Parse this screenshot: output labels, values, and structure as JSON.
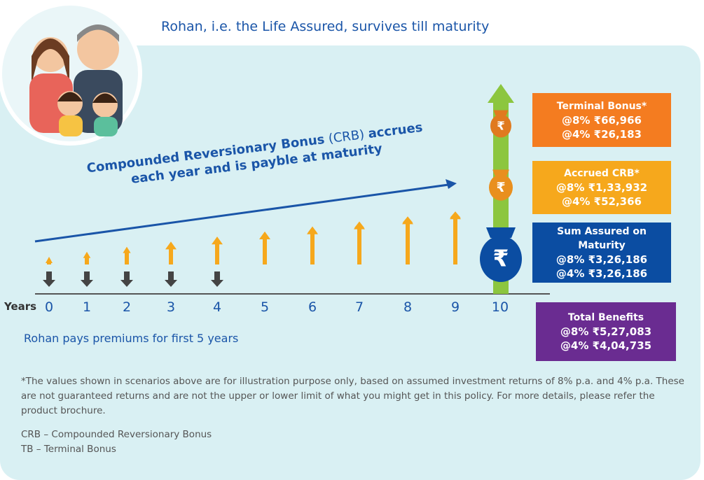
{
  "heading": "Rohan, i.e. the Life Assured, survives till maturity",
  "crb_note": {
    "line1": [
      {
        "text": "Compounded Reversionary Bonus",
        "bold": true
      },
      {
        "text": " (CRB) ",
        "bold": false
      },
      {
        "text": "accrues",
        "bold": true
      }
    ],
    "line2": "each year and is payble at maturity"
  },
  "timeline": {
    "axis_label": "Years",
    "years": [
      0,
      1,
      2,
      3,
      4,
      5,
      6,
      7,
      8,
      9,
      10
    ]
  },
  "premium_note": "Rohan pays premiums for first 5 years",
  "bag_symbol": "₹",
  "boxes": [
    {
      "title": "Terminal Bonus*",
      "lines": [
        "@8% ₹66,966",
        "@4% ₹26,183"
      ]
    },
    {
      "title": "Accrued CRB*",
      "lines": [
        "@8% ₹1,33,932",
        "@4% ₹52,366"
      ]
    },
    {
      "title": "Sum Assured on Maturity",
      "lines": [
        "@8% ₹3,26,186",
        "@4% ₹3,26,186"
      ]
    },
    {
      "title": "Total Benefits",
      "lines": [
        "@8% ₹5,27,083",
        "@4% ₹4,04,735"
      ]
    }
  ],
  "footnote": "*The values shown in scenarios above are for illustration purpose only, based on assumed investment returns of 8% p.a. and 4% p.a. These are not guaranteed returns and are not the upper or lower limit of what you might get in this policy. For more details, please refer the product brochure.",
  "abbreviations": [
    "CRB – Compounded Reversionary Bonus",
    "TB – Terminal Bonus"
  ]
}
